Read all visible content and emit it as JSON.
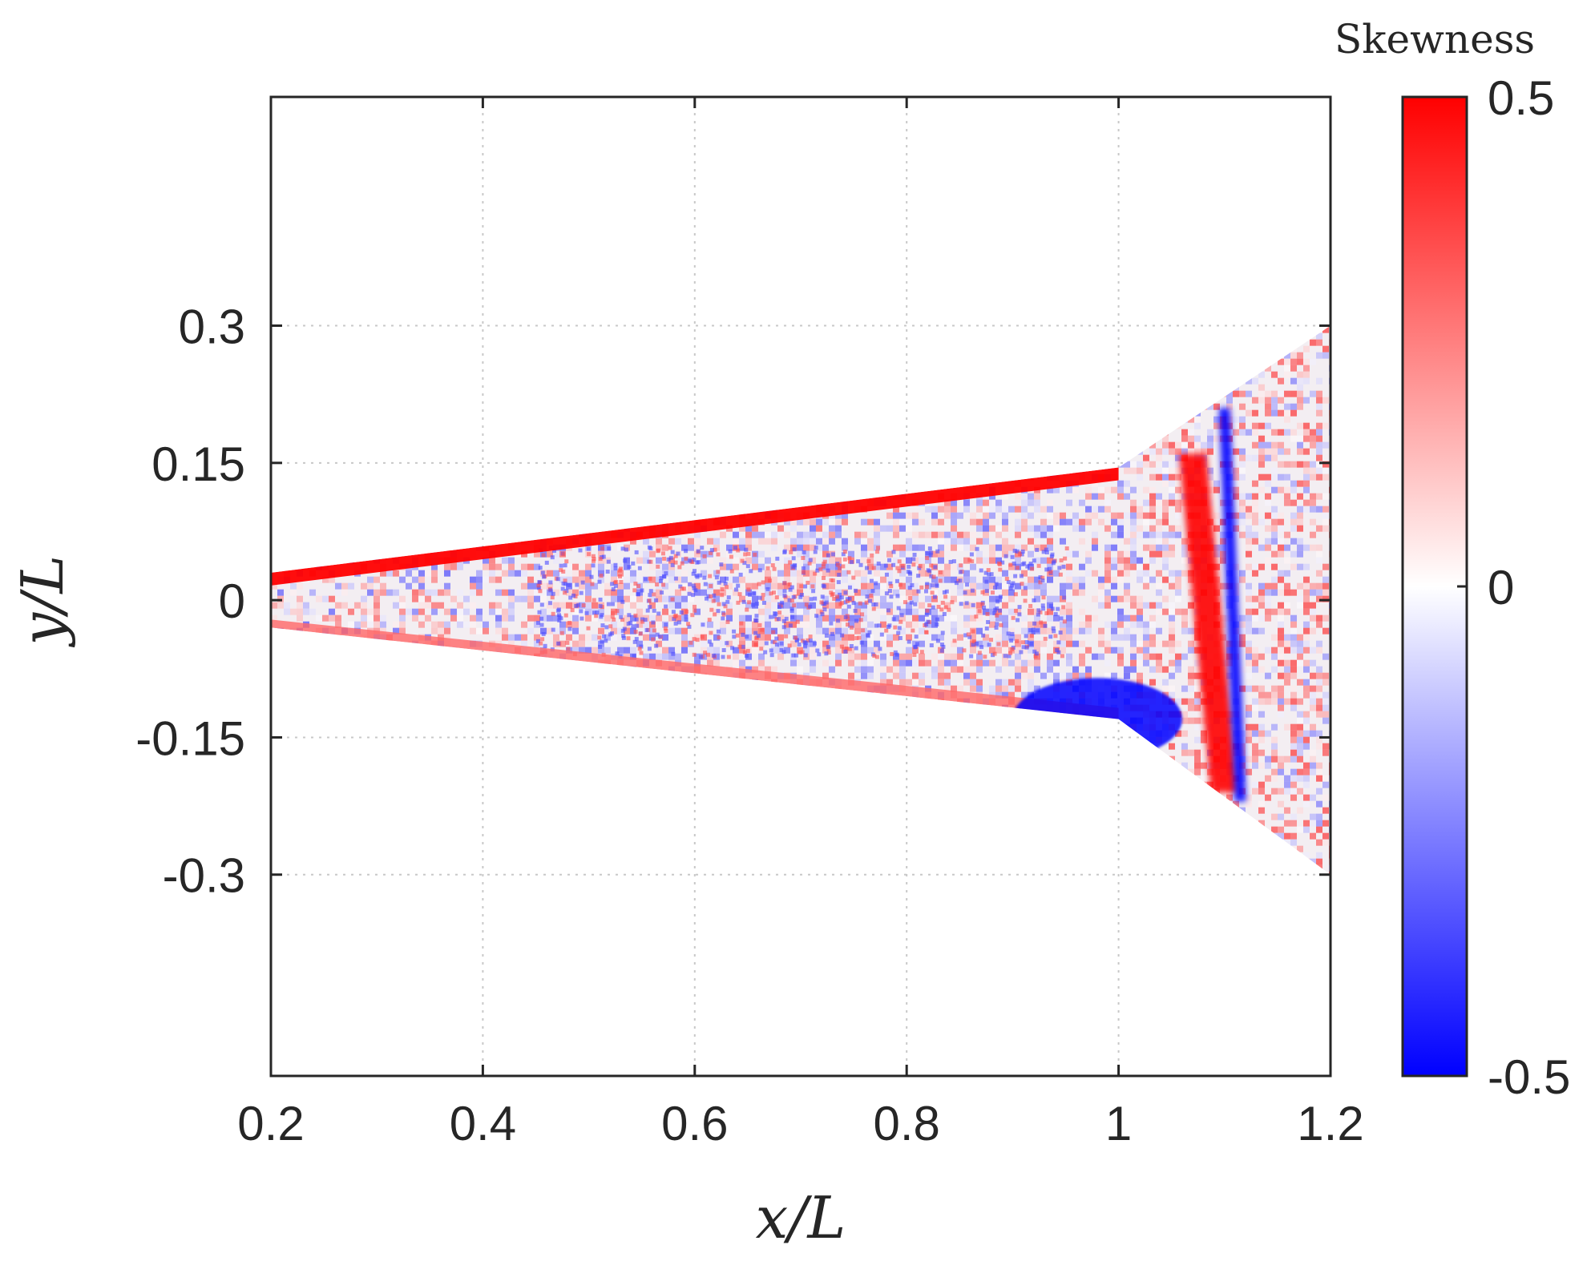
{
  "chart_data": {
    "type": "heatmap",
    "title": "",
    "xlabel": "x/L",
    "ylabel": "y/L",
    "xlim": [
      0.2,
      1.2
    ],
    "ylim": [
      -0.52,
      0.55
    ],
    "x_ticks": [
      0.2,
      0.4,
      0.6,
      0.8,
      1.0,
      1.2
    ],
    "x_tick_labels": [
      "0.2",
      "0.4",
      "0.6",
      "0.8",
      "1",
      "1.2"
    ],
    "y_ticks": [
      0.3,
      0.15,
      0,
      -0.15,
      -0.3
    ],
    "y_tick_labels": [
      "0.3",
      "0.15",
      "0",
      "-0.15",
      "-0.3"
    ],
    "grid": true,
    "colorbar": {
      "title": "Skewness",
      "range": [
        -0.5,
        0.5
      ],
      "ticks": [
        0.5,
        0,
        -0.5
      ],
      "tick_labels": [
        "0.5",
        "0",
        "-0.5"
      ],
      "colors": {
        "low": "#0000ff",
        "mid": "#ffffff",
        "high": "#ff0000"
      }
    },
    "features": [
      {
        "name": "upper-edge-band",
        "x": [
          0.2,
          1.0
        ],
        "y": [
          0.03,
          0.145
        ],
        "skewness": 0.5
      },
      {
        "name": "lower-edge-band",
        "x": [
          0.2,
          1.0
        ],
        "y": [
          -0.03,
          -0.13
        ],
        "skewness": 0.3
      },
      {
        "name": "domain-outline",
        "x": [
          0.2,
          1.0,
          1.2
        ],
        "y_top": [
          0.03,
          0.145,
          0.3
        ],
        "y_bottom": [
          -0.03,
          -0.13,
          -0.3
        ]
      },
      {
        "name": "positive-shock-band",
        "x_top": 1.07,
        "x_bottom": 1.1,
        "y": [
          -0.21,
          0.16
        ],
        "skewness": 0.5
      },
      {
        "name": "negative-shock-band",
        "x_top": 1.1,
        "x_bottom": 1.115,
        "y": [
          -0.22,
          0.21
        ],
        "skewness": -0.5
      },
      {
        "name": "negative-separation-region",
        "x": [
          0.9,
          1.06
        ],
        "y": [
          -0.175,
          -0.085
        ],
        "skewness": -0.5
      },
      {
        "name": "interior-noise",
        "x": [
          0.2,
          1.2
        ],
        "skewness_range": [
          -0.4,
          0.4
        ]
      }
    ]
  }
}
